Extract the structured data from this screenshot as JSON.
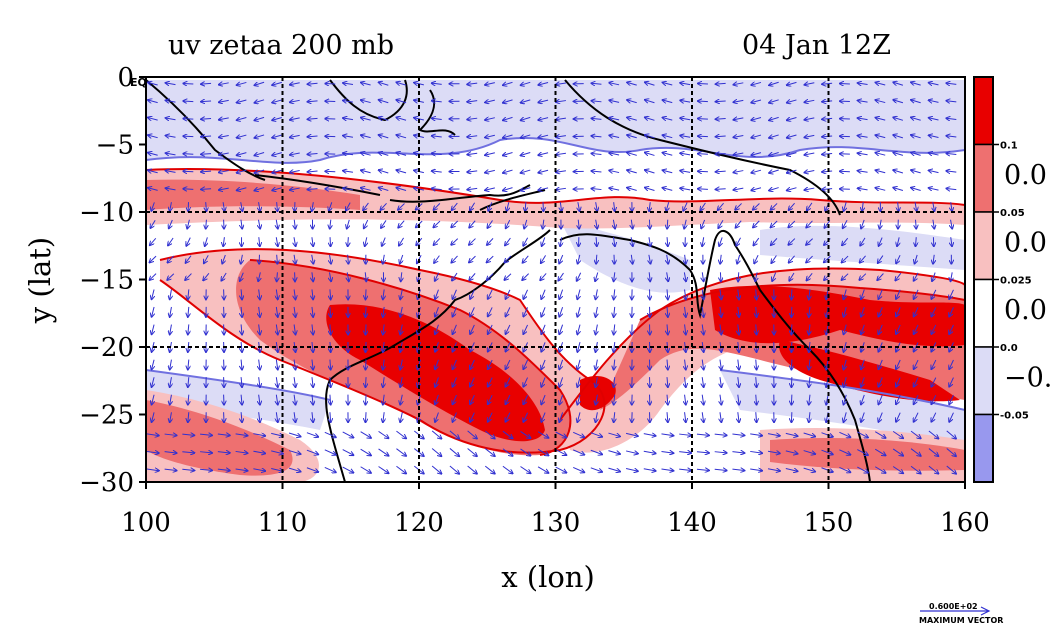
{
  "header": {
    "title_left": "uv zetaa 200 mb",
    "title_right": "04 Jan 12Z"
  },
  "map": {
    "lon_min": 100,
    "lon_max": 160,
    "lat_min": -30,
    "lat_max": 0,
    "xlabel": "x (lon)",
    "ylabel": "y (lat)",
    "x_ticks": [
      "100",
      "110",
      "120",
      "130",
      "140",
      "150",
      "160"
    ],
    "y_ticks": [
      "0",
      "−5",
      "−10",
      "−15",
      "−20",
      "−25",
      "−30"
    ],
    "corner_label": "EQ",
    "grid": "dashed every 10 degrees"
  },
  "colorbar": {
    "colors": [
      "#e80000",
      "#ee7070",
      "#f8c0c0",
      "#ffffff",
      "#dcdcf6",
      "#9898ee"
    ],
    "small_labels": [
      "0.1",
      "0.05",
      "0.025",
      "0.0",
      "-0.05"
    ],
    "big_labels": [
      "0.0",
      "0.0",
      "0.0",
      "−0."
    ]
  },
  "vector_legend": {
    "value": "0.600E+02",
    "caption": "MAXIMUM VECTOR"
  },
  "colors": {
    "strong_positive": "#e80000",
    "positive": "#ee7070",
    "weak_positive": "#f8c0c0",
    "negative": "#dcdcf6",
    "strong_negative": "#9898ee",
    "contour_red": "#e00000",
    "contour_blue": "#7070e0",
    "vector": "#3030d0",
    "coastline": "#000000"
  }
}
